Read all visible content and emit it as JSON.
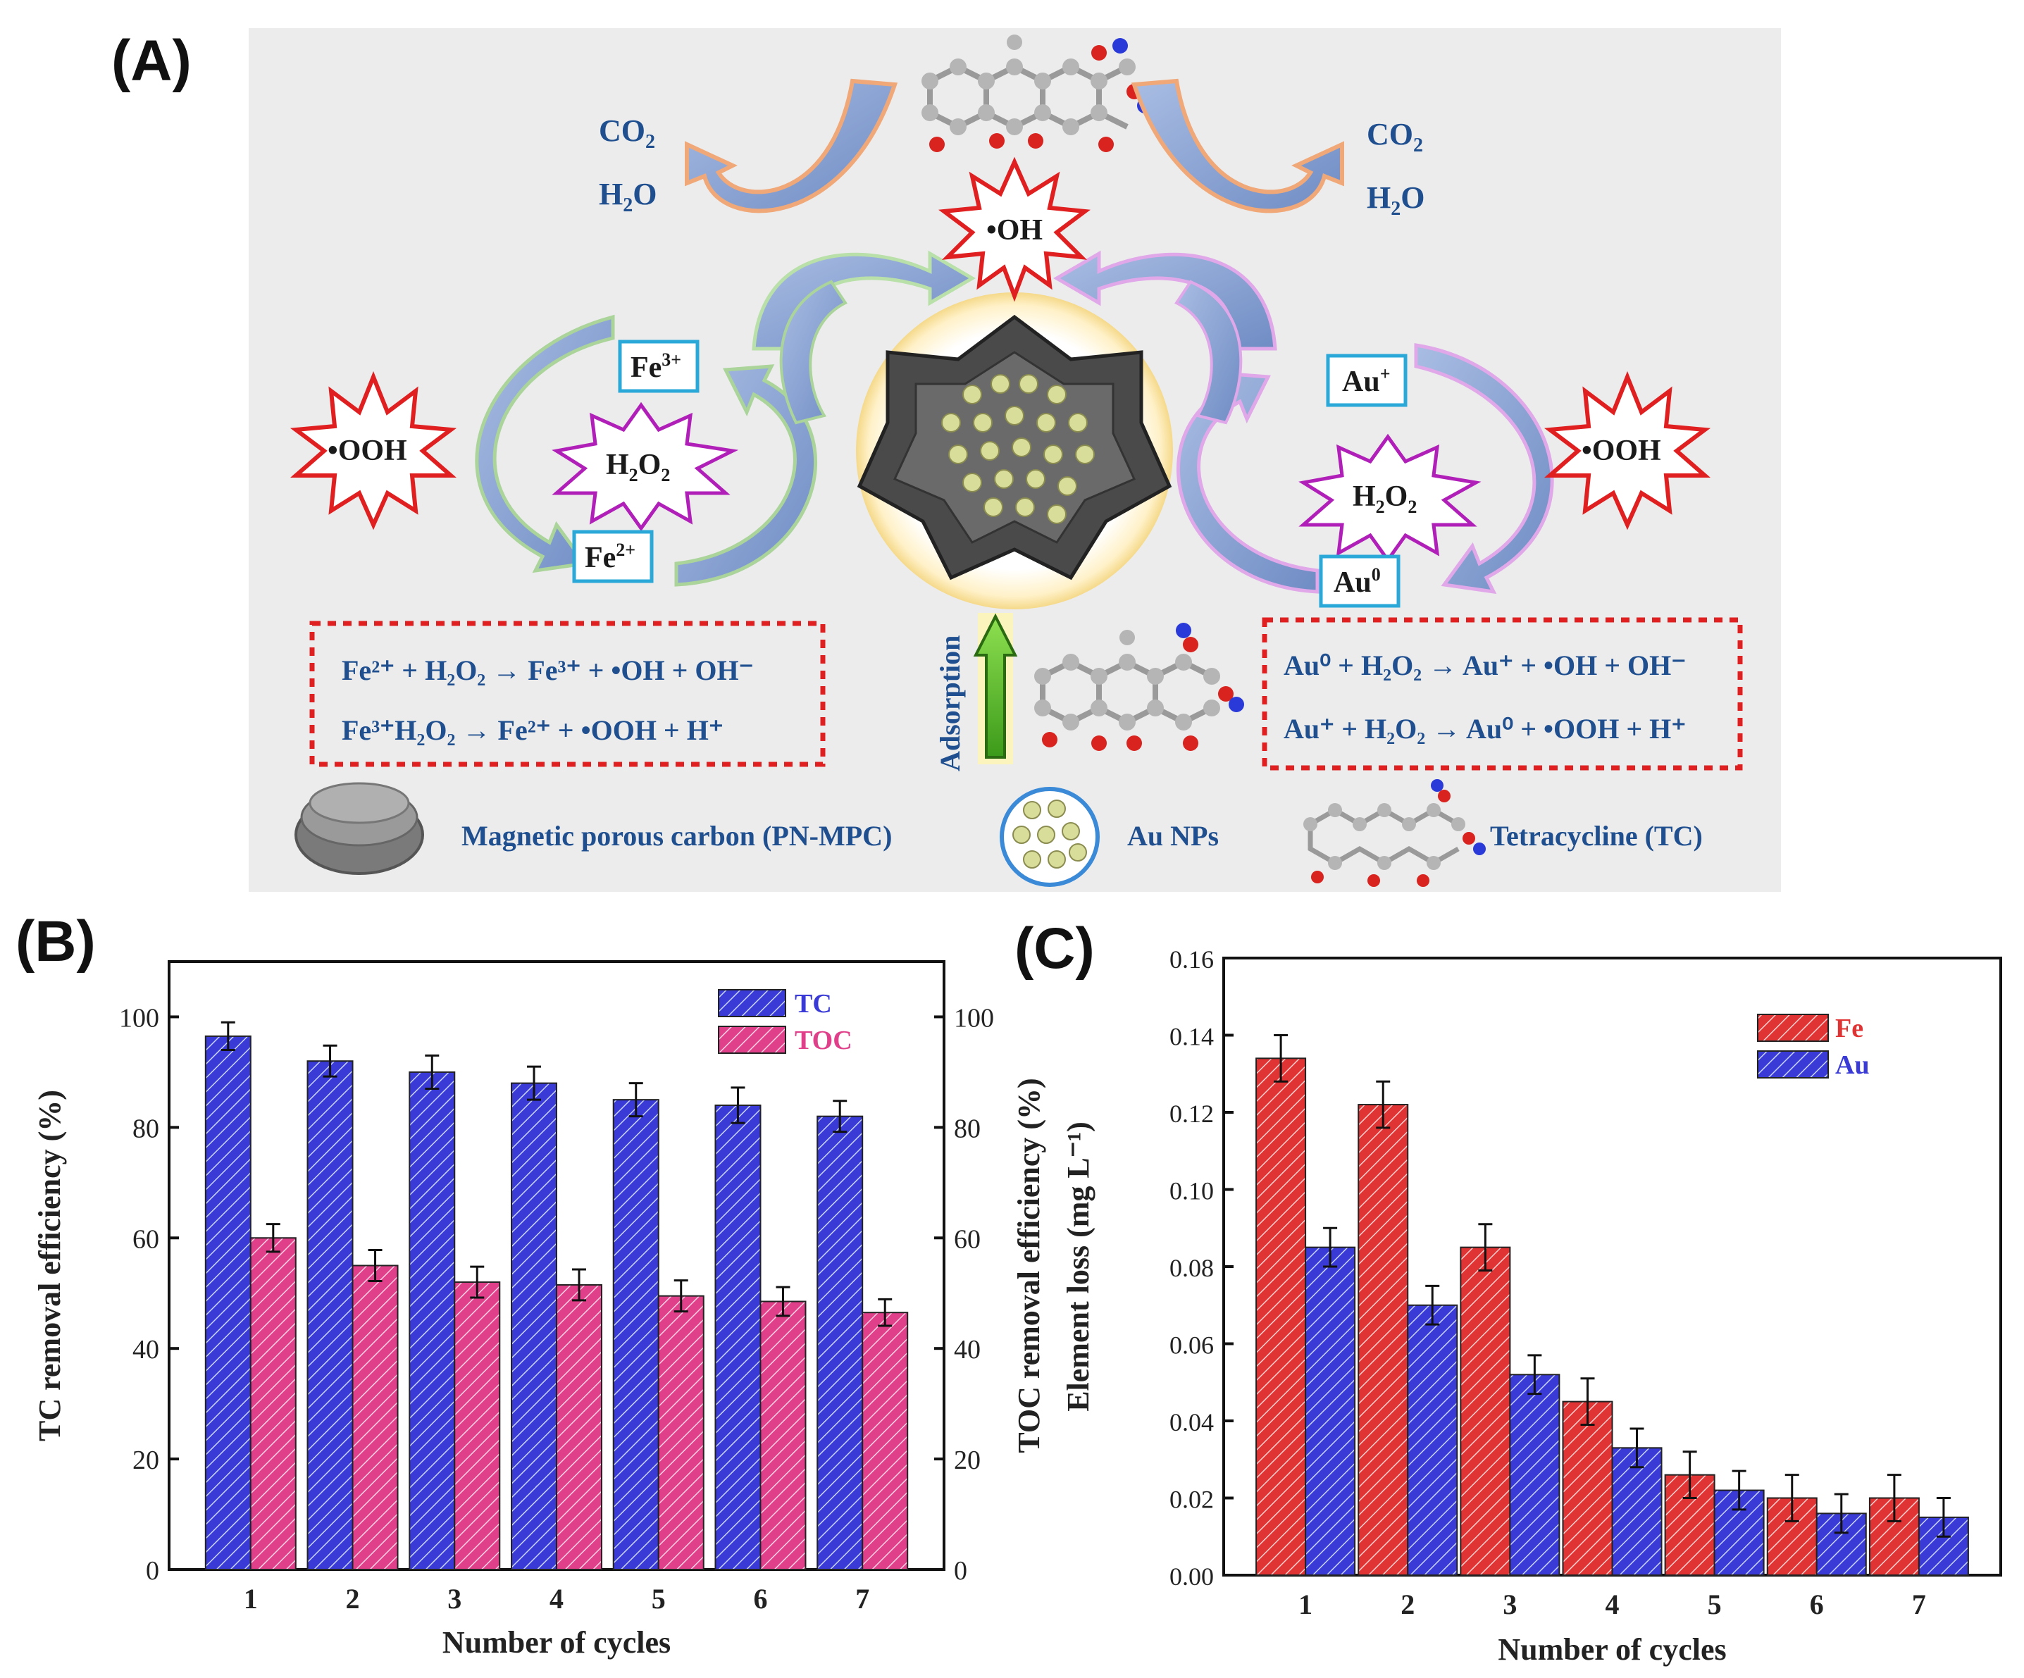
{
  "panel_labels": {
    "a": "(A)",
    "b": "(B)",
    "c": "(C)"
  },
  "scheme": {
    "co2": "CO",
    "h2o": "H",
    "oh_radical": "•OH",
    "ooh_radical": "•OOH",
    "h2o2": "H",
    "fe3": "Fe",
    "fe2": "Fe",
    "au_plus": "Au",
    "au_zero": "Au",
    "adsorption": "Adsorption",
    "eq_fe_1": "Fe²⁺ + H₂O₂ → Fe³⁺ + •OH + OH⁻",
    "eq_fe_2": "Fe³⁺H₂O₂ → Fe²⁺ + •OOH + H⁺",
    "eq_au_1": "Au⁰ + H₂O₂ → Au⁺ + •OH + OH⁻",
    "eq_au_2": "Au⁺ + H₂O₂ → Au⁰ + •OOH + H⁺",
    "legend_mpc": "Magnetic porous carbon (PN-MPC)",
    "legend_au": "Au NPs",
    "legend_tc": "Tetracycline (TC)"
  },
  "chart_data": [
    {
      "id": "B",
      "type": "bar",
      "categories": [
        "1",
        "2",
        "3",
        "4",
        "5",
        "6",
        "7"
      ],
      "series": [
        {
          "name": "TC",
          "axis": "left",
          "values": [
            96.5,
            92,
            90,
            88,
            85,
            84,
            82
          ],
          "errors": [
            2.5,
            2.8,
            3,
            3,
            3,
            3.2,
            2.8
          ],
          "color": "#3a3ad6"
        },
        {
          "name": "TOC",
          "axis": "right",
          "values": [
            60,
            55,
            52,
            51.5,
            49.5,
            48.5,
            46.5
          ],
          "errors": [
            2.5,
            2.8,
            2.8,
            2.8,
            2.8,
            2.6,
            2.4
          ],
          "color": "#e0408a"
        }
      ],
      "xlabel": "Number of cycles",
      "ylabel": "TC removal efficiency (%)",
      "ylabel_right": "TOC removal efficiency (%)",
      "ylim": [
        0,
        110
      ],
      "yticks": [
        "0",
        "20",
        "40",
        "60",
        "80",
        "100"
      ],
      "yticks_right": [
        "0",
        "20",
        "40",
        "60",
        "80",
        "100"
      ],
      "legend_placement": "top-right"
    },
    {
      "id": "C",
      "type": "bar",
      "categories": [
        "1",
        "2",
        "3",
        "4",
        "5",
        "6",
        "7"
      ],
      "series": [
        {
          "name": "Fe",
          "values": [
            0.134,
            0.122,
            0.085,
            0.045,
            0.026,
            0.02,
            0.02
          ],
          "errors": [
            0.006,
            0.006,
            0.006,
            0.006,
            0.006,
            0.006,
            0.006
          ],
          "color": "#e03434"
        },
        {
          "name": "Au",
          "values": [
            0.085,
            0.07,
            0.052,
            0.033,
            0.022,
            0.016,
            0.015
          ],
          "errors": [
            0.005,
            0.005,
            0.005,
            0.005,
            0.005,
            0.005,
            0.005
          ],
          "color": "#3a3ad6"
        }
      ],
      "xlabel": "Number of cycles",
      "ylabel": "Element loss (mg L⁻¹)",
      "ylim": [
        0,
        0.16
      ],
      "yticks": [
        "0.00",
        "0.02",
        "0.04",
        "0.06",
        "0.08",
        "0.10",
        "0.12",
        "0.14",
        "0.16"
      ],
      "legend_placement": "top-right"
    }
  ]
}
